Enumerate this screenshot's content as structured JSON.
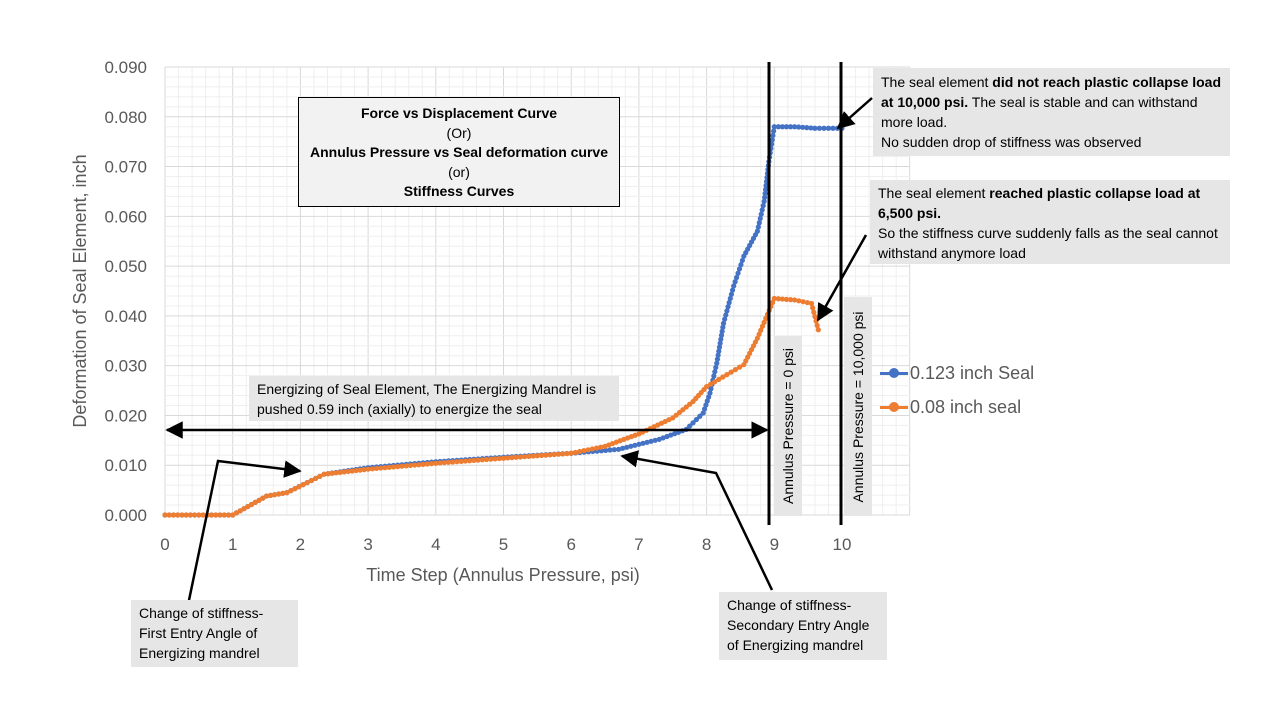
{
  "chart_data": {
    "type": "scatter",
    "xlabel": "Time Step (Annulus Pressure, psi)",
    "ylabel": "Deformation of Seal Element, inch",
    "xlim": [
      0,
      10
    ],
    "ylim": [
      0,
      0.09
    ],
    "x_ticks": [
      "0",
      "1",
      "2",
      "3",
      "4",
      "5",
      "6",
      "7",
      "8",
      "9",
      "10"
    ],
    "y_ticks": [
      "0.000",
      "0.010",
      "0.020",
      "0.030",
      "0.040",
      "0.050",
      "0.060",
      "0.070",
      "0.080",
      "0.090"
    ],
    "grid": true,
    "legend_position": "right",
    "series": [
      {
        "name": "0.123 inch Seal",
        "color": "#4472C4",
        "points": [
          [
            0,
            0
          ],
          [
            1,
            0
          ],
          [
            1.5,
            0.0038
          ],
          [
            1.8,
            0.0045
          ],
          [
            2.1,
            0.0065
          ],
          [
            2.35,
            0.0082
          ],
          [
            3,
            0.0095
          ],
          [
            4,
            0.0107
          ],
          [
            5,
            0.0116
          ],
          [
            6,
            0.0124
          ],
          [
            6.7,
            0.0132
          ],
          [
            7.3,
            0.0152
          ],
          [
            7.7,
            0.0172
          ],
          [
            7.95,
            0.0205
          ],
          [
            8.05,
            0.0245
          ],
          [
            8.15,
            0.0305
          ],
          [
            8.25,
            0.0385
          ],
          [
            8.4,
            0.046
          ],
          [
            8.55,
            0.052
          ],
          [
            8.75,
            0.057
          ],
          [
            8.85,
            0.063
          ],
          [
            8.92,
            0.071
          ],
          [
            9,
            0.078
          ],
          [
            9.3,
            0.078
          ],
          [
            9.6,
            0.0777
          ],
          [
            10,
            0.0777
          ]
        ]
      },
      {
        "name": "0.08 inch seal",
        "color": "#ED7D31",
        "points": [
          [
            0,
            0
          ],
          [
            1,
            0
          ],
          [
            1.5,
            0.0038
          ],
          [
            1.8,
            0.0045
          ],
          [
            2.1,
            0.0065
          ],
          [
            2.35,
            0.0082
          ],
          [
            3,
            0.0092
          ],
          [
            4,
            0.0104
          ],
          [
            5,
            0.0114
          ],
          [
            6,
            0.0124
          ],
          [
            6.5,
            0.0138
          ],
          [
            7,
            0.0163
          ],
          [
            7.5,
            0.0195
          ],
          [
            7.8,
            0.0228
          ],
          [
            8,
            0.0258
          ],
          [
            8.3,
            0.0282
          ],
          [
            8.55,
            0.0302
          ],
          [
            8.75,
            0.0355
          ],
          [
            9,
            0.0435
          ],
          [
            9.3,
            0.0432
          ],
          [
            9.55,
            0.0425
          ],
          [
            9.65,
            0.0372
          ]
        ]
      }
    ],
    "annotations": {
      "title_box": {
        "line1": "Force vs Displacement Curve",
        "line2": "(Or)",
        "line3": "Annulus Pressure vs Seal deformation curve",
        "line4": "(or)",
        "line5": "Stiffness Curves"
      },
      "top_box": {
        "p1_a": "The seal element ",
        "p1_b": "did not reach plastic collapse load at 10,000 psi.",
        "p1_c": " The seal is stable and can withstand more load.",
        "p2": "No sudden drop of stiffness was observed"
      },
      "mid_box": {
        "p1_a": "The seal element ",
        "p1_b": "reached plastic collapse load at 6,500 psi.",
        "p2": "So the stiffness curve suddenly falls as the seal cannot withstand anymore load"
      },
      "energizing_box": "Energizing of Seal Element, The Energizing Mandrel is pushed 0.59 inch (axially) to energize the seal",
      "first_angle_box": "Change of stiffness-First Entry Angle of Energizing mandrel",
      "second_angle_box": "Change of stiffness-Secondary Entry Angle of Energizing mandrel",
      "label_zero": "Annulus Pressure = 0 psi",
      "label_max": "Annulus Pressure = 10,000 psi"
    }
  }
}
